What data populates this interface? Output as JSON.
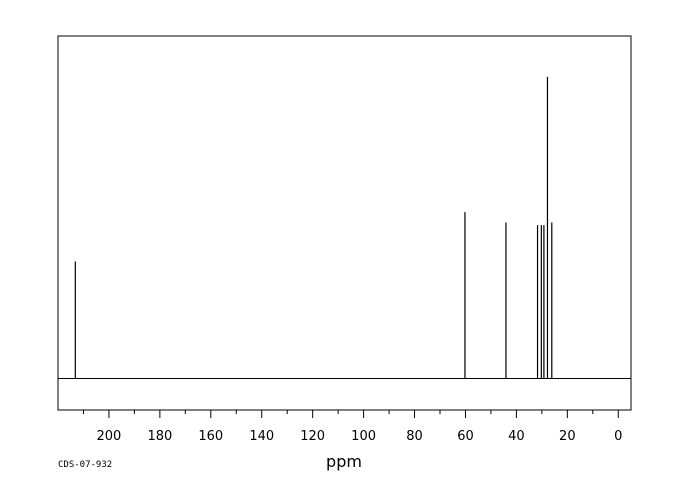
{
  "chart_data": {
    "type": "line",
    "title": "",
    "xlabel": "ppm",
    "ylabel": "",
    "xlim": [
      220,
      -5
    ],
    "x_reversed": true,
    "ylim": [
      0,
      1.2
    ],
    "grid": false,
    "x_ticks_major": [
      200,
      180,
      160,
      140,
      120,
      100,
      80,
      60,
      40,
      20,
      0
    ],
    "x_tick_labels": [
      "200",
      "180",
      "160",
      "140",
      "120",
      100,
      "80",
      "60",
      "40",
      "20",
      "0"
    ],
    "x_ticks_minor": [
      210,
      190,
      170,
      150,
      130,
      110,
      90,
      70,
      50,
      30,
      10
    ],
    "peaks": [
      {
        "ppm": 213.2,
        "intensity": 0.45
      },
      {
        "ppm": 60.2,
        "intensity": 0.64
      },
      {
        "ppm": 44.1,
        "intensity": 0.6
      },
      {
        "ppm": 31.7,
        "intensity": 0.59
      },
      {
        "ppm": 30.2,
        "intensity": 0.59
      },
      {
        "ppm": 29.2,
        "intensity": 0.59
      },
      {
        "ppm": 27.8,
        "intensity": 1.16
      },
      {
        "ppm": 26.1,
        "intensity": 0.6
      }
    ],
    "color": "#000000"
  },
  "footer": {
    "code": "CDS-07-932"
  }
}
